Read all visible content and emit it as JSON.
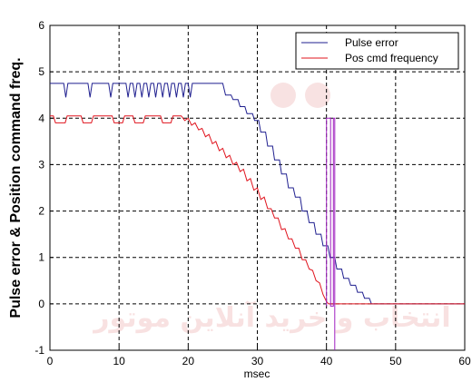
{
  "chart_data": {
    "type": "line",
    "title": "",
    "xlabel": "msec",
    "ylabel": "Pulse error & Position command freq.",
    "xlim": [
      0,
      60
    ],
    "ylim": [
      -1,
      6
    ],
    "x_ticks": [
      "0",
      "10",
      "20",
      "30",
      "40",
      "50",
      "60"
    ],
    "y_ticks": [
      "-1",
      "0",
      "1",
      "2",
      "3",
      "4",
      "5",
      "6"
    ],
    "grid": true,
    "legend_position": "top-right",
    "series": [
      {
        "name": "Pulse error",
        "color": "#1f1f8f",
        "points": [
          [
            0,
            4.75
          ],
          [
            2,
            4.75
          ],
          [
            2.3,
            4.45
          ],
          [
            2.6,
            4.75
          ],
          [
            5.5,
            4.75
          ],
          [
            5.8,
            4.45
          ],
          [
            6.1,
            4.75
          ],
          [
            8.5,
            4.75
          ],
          [
            8.8,
            4.45
          ],
          [
            9.1,
            4.75
          ],
          [
            11,
            4.75
          ],
          [
            11.3,
            4.45
          ],
          [
            11.6,
            4.75
          ],
          [
            12,
            4.75
          ],
          [
            12.3,
            4.45
          ],
          [
            12.6,
            4.75
          ],
          [
            13,
            4.75
          ],
          [
            13.3,
            4.45
          ],
          [
            13.6,
            4.75
          ],
          [
            14,
            4.75
          ],
          [
            14.3,
            4.45
          ],
          [
            14.6,
            4.75
          ],
          [
            15,
            4.75
          ],
          [
            15.3,
            4.45
          ],
          [
            15.6,
            4.75
          ],
          [
            16,
            4.75
          ],
          [
            16.3,
            4.45
          ],
          [
            16.6,
            4.75
          ],
          [
            17,
            4.75
          ],
          [
            17.3,
            4.45
          ],
          [
            17.6,
            4.75
          ],
          [
            18,
            4.75
          ],
          [
            18.3,
            4.45
          ],
          [
            18.6,
            4.75
          ],
          [
            19,
            4.75
          ],
          [
            19.3,
            4.45
          ],
          [
            19.6,
            4.75
          ],
          [
            20,
            4.75
          ],
          [
            20.3,
            4.45
          ],
          [
            20.6,
            4.75
          ],
          [
            25,
            4.75
          ],
          [
            25.4,
            4.5
          ],
          [
            26.2,
            4.5
          ],
          [
            26.5,
            4.4
          ],
          [
            27.2,
            4.4
          ],
          [
            27.5,
            4.25
          ],
          [
            28.2,
            4.25
          ],
          [
            28.5,
            4.1
          ],
          [
            29.3,
            4.1
          ],
          [
            29.6,
            3.95
          ],
          [
            30.2,
            3.95
          ],
          [
            30.5,
            3.7
          ],
          [
            31.2,
            3.7
          ],
          [
            31.5,
            3.4
          ],
          [
            32.2,
            3.4
          ],
          [
            32.5,
            3.1
          ],
          [
            33.2,
            3.1
          ],
          [
            33.5,
            2.8
          ],
          [
            34.2,
            2.8
          ],
          [
            34.5,
            2.5
          ],
          [
            35.2,
            2.5
          ],
          [
            35.5,
            2.3
          ],
          [
            36.2,
            2.3
          ],
          [
            36.5,
            2.0
          ],
          [
            37.2,
            2.0
          ],
          [
            37.5,
            1.75
          ],
          [
            38.2,
            1.75
          ],
          [
            38.5,
            1.5
          ],
          [
            39.2,
            1.5
          ],
          [
            39.5,
            1.25
          ],
          [
            40.2,
            1.25
          ],
          [
            40.5,
            1.0
          ],
          [
            41.2,
            1.0
          ],
          [
            41.5,
            0.75
          ],
          [
            42.2,
            0.75
          ],
          [
            42.5,
            0.55
          ],
          [
            43.2,
            0.55
          ],
          [
            43.5,
            0.4
          ],
          [
            44.2,
            0.4
          ],
          [
            44.5,
            0.25
          ],
          [
            45.2,
            0.25
          ],
          [
            45.5,
            0.12
          ],
          [
            46.2,
            0.12
          ],
          [
            46.5,
            0.0
          ],
          [
            60,
            0.0
          ]
        ]
      },
      {
        "name": "Pos cmd frequency",
        "color": "#e0141e",
        "points": [
          [
            0,
            4.05
          ],
          [
            0.5,
            4.05
          ],
          [
            0.8,
            3.9
          ],
          [
            2.2,
            3.9
          ],
          [
            2.5,
            4.05
          ],
          [
            4.5,
            4.05
          ],
          [
            4.8,
            3.9
          ],
          [
            6,
            3.9
          ],
          [
            6.3,
            4.05
          ],
          [
            9,
            4.05
          ],
          [
            9.3,
            3.9
          ],
          [
            10.5,
            3.9
          ],
          [
            10.8,
            4.05
          ],
          [
            12,
            4.05
          ],
          [
            12.3,
            3.9
          ],
          [
            13.5,
            3.9
          ],
          [
            13.8,
            4.05
          ],
          [
            16,
            4.05
          ],
          [
            16.3,
            3.9
          ],
          [
            17.5,
            3.9
          ],
          [
            17.8,
            4.05
          ],
          [
            19,
            4.05
          ],
          [
            19.5,
            3.95
          ],
          [
            20,
            4.0
          ],
          [
            20.5,
            3.85
          ],
          [
            21,
            3.9
          ],
          [
            21.5,
            3.75
          ],
          [
            22,
            3.78
          ],
          [
            22.5,
            3.6
          ],
          [
            23,
            3.65
          ],
          [
            23.5,
            3.45
          ],
          [
            24,
            3.5
          ],
          [
            24.5,
            3.3
          ],
          [
            25,
            3.35
          ],
          [
            25.5,
            3.15
          ],
          [
            26,
            3.2
          ],
          [
            26.5,
            3.0
          ],
          [
            27,
            3.05
          ],
          [
            27.5,
            2.85
          ],
          [
            28,
            2.9
          ],
          [
            28.5,
            2.65
          ],
          [
            29,
            2.7
          ],
          [
            29.5,
            2.45
          ],
          [
            30,
            2.5
          ],
          [
            30.5,
            2.25
          ],
          [
            31,
            2.3
          ],
          [
            31.5,
            2.05
          ],
          [
            32,
            2.05
          ],
          [
            32.5,
            1.85
          ],
          [
            33,
            1.85
          ],
          [
            33.5,
            1.6
          ],
          [
            34,
            1.62
          ],
          [
            34.5,
            1.4
          ],
          [
            35,
            1.4
          ],
          [
            35.5,
            1.2
          ],
          [
            36,
            1.2
          ],
          [
            36.5,
            0.95
          ],
          [
            37,
            0.95
          ],
          [
            37.5,
            0.75
          ],
          [
            38,
            0.72
          ],
          [
            38.5,
            0.5
          ],
          [
            39,
            0.45
          ],
          [
            39.5,
            0.2
          ],
          [
            40,
            0.05
          ],
          [
            40.3,
            0.0
          ],
          [
            60,
            0.0
          ]
        ]
      },
      {
        "name": "",
        "color": "#a020c0",
        "points": [
          [
            40,
            -0.05
          ],
          [
            40,
            4.0
          ],
          [
            40.6,
            4.0
          ],
          [
            40.6,
            -0.05
          ],
          [
            41,
            -0.05
          ],
          [
            41,
            4.0
          ],
          [
            41.2,
            4.0
          ],
          [
            41.2,
            -1.0
          ]
        ]
      }
    ]
  },
  "watermark": {
    "text": "انتخاب و خرید آنلاین موتور",
    "color": "#f3caca"
  }
}
